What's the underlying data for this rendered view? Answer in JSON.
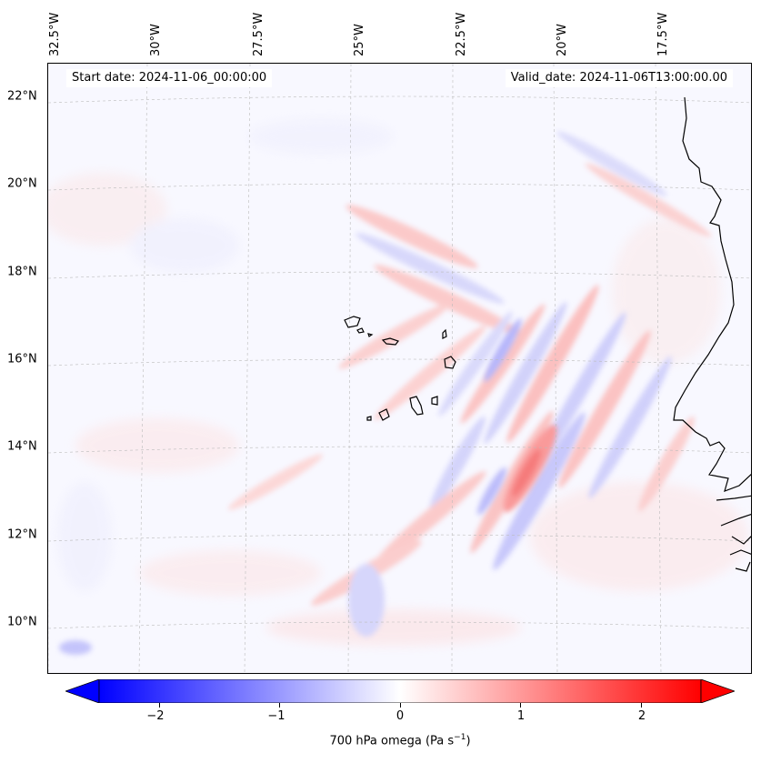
{
  "header": {
    "start_date": "Start date: 2024-11-06_00:00:00",
    "valid_date": "Valid_date: 2024-11-06T13:00:00.00"
  },
  "map": {
    "lon_labels": [
      "32.5°W",
      "30°W",
      "27.5°W",
      "25°W",
      "22.5°W",
      "20°W",
      "17.5°W"
    ],
    "lat_labels": [
      "22°N",
      "20°N",
      "18°N",
      "16°N",
      "14°N",
      "12°N",
      "10°N"
    ],
    "extent": {
      "lon": [
        -33,
        -15.5
      ],
      "lat": [
        9,
        23
      ]
    },
    "coastline_color": "#000000",
    "gridline_color": "#bbbbbb"
  },
  "colorbar": {
    "label_main": "700 hPa omega (Pa s",
    "label_exp": "−1",
    "label_close": ")",
    "ticks": [
      "−2",
      "−1",
      "0",
      "1",
      "2"
    ],
    "tick_values": [
      -2,
      -1,
      0,
      1,
      2
    ],
    "range": [
      -2.5,
      2.5
    ],
    "colormap": "bwr",
    "low_color": "#0000ff",
    "mid_color": "#ffffff",
    "high_color": "#ff0000",
    "extend": "both"
  },
  "chart_data": {
    "type": "heatmap",
    "variable": "700 hPa omega",
    "units": "Pa s-1",
    "vmin": -2.5,
    "vmax": 2.5
  }
}
